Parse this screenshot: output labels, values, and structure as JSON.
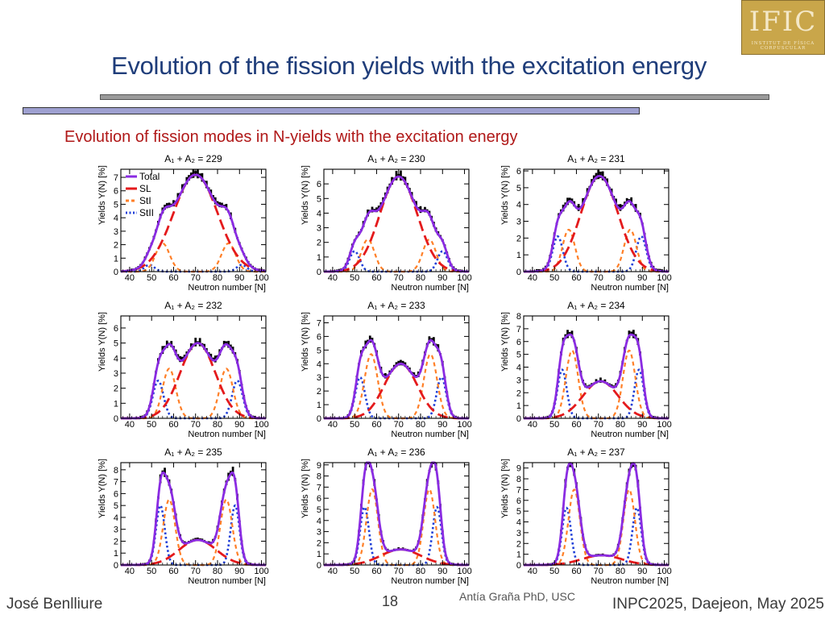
{
  "slide": {
    "title": "Evolution of the fission yields with the excitation energy",
    "subtitle": "Evolution of fission modes in N-yields with the excitation energy",
    "logo_text": "IFIC",
    "logo_subtext": "INSTITUT DE FÍSICA CORPUSCULAR",
    "author": "José Benlliure",
    "page_number": "18",
    "credit": "Antía Graña PhD, USC",
    "conference": "INPC2025, Daejeon, May 2025"
  },
  "colors": {
    "title": "#1f3d7a",
    "subtitle": "#b01818",
    "total": "#8a2be2",
    "sl": "#e41a1c",
    "sti": "#ff7f27",
    "stii": "#1f3fd8",
    "data": "#000000"
  },
  "chart_data": [
    {
      "type": "line",
      "title": "A₁ + A₂ = 229",
      "xlabel": "Neutron number [N]",
      "ylabel": "Yields Y(N) [%]",
      "xlim": [
        36,
        102
      ],
      "xticks": [
        40,
        50,
        60,
        70,
        80,
        90,
        100
      ],
      "ylim": [
        0,
        7.6
      ],
      "yticks": [
        0,
        1,
        2,
        3,
        4,
        5,
        6,
        7
      ],
      "legend": [
        "Total",
        "SL",
        "StI",
        "StII"
      ],
      "modes": {
        "sl": {
          "amplitude": 7.2,
          "center": 70,
          "sigma": 10
        },
        "sti": {
          "amplitude": 2.1,
          "separation": 15,
          "sigma": 3.2
        },
        "stii": {
          "amplitude": 0.5,
          "separation": 21,
          "sigma": 2.3
        }
      }
    },
    {
      "type": "line",
      "title": "A₁ + A₂ = 230",
      "xlabel": "Neutron number [N]",
      "ylabel": "Yields Y(N) [%]",
      "xlim": [
        36,
        102
      ],
      "xticks": [
        40,
        50,
        60,
        70,
        80,
        90,
        100
      ],
      "ylim": [
        0,
        7
      ],
      "yticks": [
        0,
        1,
        2,
        3,
        4,
        5,
        6
      ],
      "modes": {
        "sl": {
          "amplitude": 6.5,
          "center": 70,
          "sigma": 8.5
        },
        "sti": {
          "amplitude": 2.2,
          "separation": 14,
          "sigma": 3
        },
        "stii": {
          "amplitude": 1.4,
          "separation": 20,
          "sigma": 2.3
        }
      }
    },
    {
      "type": "line",
      "title": "A₁ + A₂ = 231",
      "xlabel": "Neutron number [N]",
      "ylabel": "Yields Y(N) [%]",
      "xlim": [
        36,
        102
      ],
      "xticks": [
        40,
        50,
        60,
        70,
        80,
        90,
        100
      ],
      "ylim": [
        0,
        6.1
      ],
      "yticks": [
        0,
        1,
        2,
        3,
        4,
        5,
        6
      ],
      "modes": {
        "sl": {
          "amplitude": 5.7,
          "center": 70.5,
          "sigma": 8.5
        },
        "sti": {
          "amplitude": 2.5,
          "separation": 14,
          "sigma": 2.8
        },
        "stii": {
          "amplitude": 2.1,
          "separation": 19,
          "sigma": 2.3
        }
      }
    },
    {
      "type": "line",
      "title": "A₁ + A₂ = 232",
      "xlabel": "Neutron number [N]",
      "ylabel": "Yields Y(N) [%]",
      "xlim": [
        36,
        102
      ],
      "xticks": [
        40,
        50,
        60,
        70,
        80,
        90,
        100
      ],
      "ylim": [
        0,
        6.8
      ],
      "yticks": [
        0,
        1,
        2,
        3,
        4,
        5,
        6
      ],
      "modes": {
        "sl": {
          "amplitude": 5.0,
          "center": 71,
          "sigma": 8
        },
        "sti": {
          "amplitude": 3.3,
          "separation": 13,
          "sigma": 3
        },
        "stii": {
          "amplitude": 2.5,
          "separation": 18,
          "sigma": 2.4
        }
      }
    },
    {
      "type": "line",
      "title": "A₁ + A₂ = 233",
      "xlabel": "Neutron number [N]",
      "ylabel": "Yields Y(N) [%]",
      "xlim": [
        36,
        102
      ],
      "xticks": [
        40,
        50,
        60,
        70,
        80,
        90,
        100
      ],
      "ylim": [
        0,
        7.5
      ],
      "yticks": [
        0,
        1,
        2,
        3,
        4,
        5,
        6,
        7
      ],
      "modes": {
        "sl": {
          "amplitude": 4.0,
          "center": 71,
          "sigma": 7.5
        },
        "sti": {
          "amplitude": 4.7,
          "separation": 13.5,
          "sigma": 3
        },
        "stii": {
          "amplitude": 3.0,
          "separation": 18.5,
          "sigma": 2.2
        }
      }
    },
    {
      "type": "line",
      "title": "A₁ + A₂ = 234",
      "xlabel": "Neutron number [N]",
      "ylabel": "Yields Y(N) [%]",
      "xlim": [
        36,
        102
      ],
      "xticks": [
        40,
        50,
        60,
        70,
        80,
        90,
        100
      ],
      "ylim": [
        0,
        8
      ],
      "yticks": [
        0,
        1,
        2,
        3,
        4,
        5,
        6,
        7,
        8
      ],
      "modes": {
        "sl": {
          "amplitude": 2.9,
          "center": 71,
          "sigma": 8
        },
        "sti": {
          "amplitude": 5.3,
          "separation": 13,
          "sigma": 2.8
        },
        "stii": {
          "amplitude": 3.8,
          "separation": 17.5,
          "sigma": 2.1
        }
      }
    },
    {
      "type": "line",
      "title": "A₁ + A₂ = 235",
      "xlabel": "Neutron number [N]",
      "ylabel": "Yields Y(N) [%]",
      "xlim": [
        36,
        102
      ],
      "xticks": [
        40,
        50,
        60,
        70,
        80,
        90,
        100
      ],
      "ylim": [
        0,
        8.6
      ],
      "yticks": [
        0,
        1,
        2,
        3,
        4,
        5,
        6,
        7,
        8
      ],
      "modes": {
        "sl": {
          "amplitude": 2.1,
          "center": 71,
          "sigma": 8.5
        },
        "sti": {
          "amplitude": 5.5,
          "separation": 13,
          "sigma": 2.7
        },
        "stii": {
          "amplitude": 5.0,
          "separation": 17,
          "sigma": 2
        }
      }
    },
    {
      "type": "line",
      "title": "A₁ + A₂ = 236",
      "xlabel": "Neutron number [N]",
      "ylabel": "Yields Y(N) [%]",
      "xlim": [
        36,
        102
      ],
      "xticks": [
        40,
        50,
        60,
        70,
        80,
        90,
        100
      ],
      "ylim": [
        0,
        9.2
      ],
      "yticks": [
        0,
        1,
        2,
        3,
        4,
        5,
        6,
        7,
        8,
        9
      ],
      "modes": {
        "sl": {
          "amplitude": 1.4,
          "center": 71,
          "sigma": 9
        },
        "sti": {
          "amplitude": 6.8,
          "separation": 13,
          "sigma": 2.6
        },
        "stii": {
          "amplitude": 5.2,
          "separation": 16.5,
          "sigma": 2
        }
      }
    },
    {
      "type": "line",
      "title": "A₁ + A₂ = 237",
      "xlabel": "Neutron number [N]",
      "ylabel": "Yields Y(N) [%]",
      "xlim": [
        36,
        102
      ],
      "xticks": [
        40,
        50,
        60,
        70,
        80,
        90,
        100
      ],
      "ylim": [
        0,
        9.5
      ],
      "yticks": [
        0,
        1,
        2,
        3,
        4,
        5,
        6,
        7,
        8,
        9
      ],
      "modes": {
        "sl": {
          "amplitude": 0.9,
          "center": 71.5,
          "sigma": 9
        },
        "sti": {
          "amplitude": 7.0,
          "separation": 12.5,
          "sigma": 2.6
        },
        "stii": {
          "amplitude": 5.3,
          "separation": 16,
          "sigma": 2
        }
      }
    }
  ]
}
